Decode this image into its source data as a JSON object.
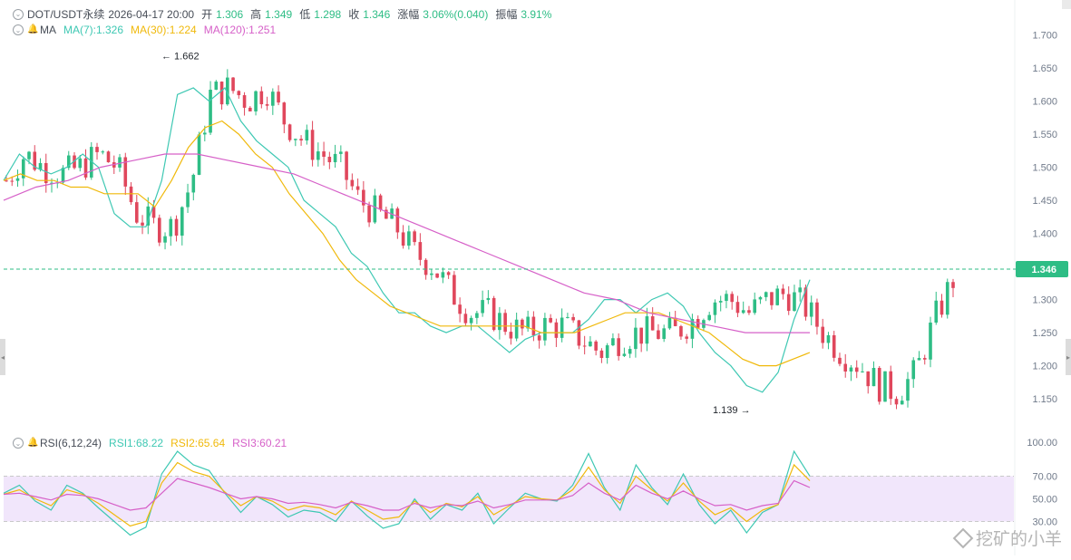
{
  "header": {
    "symbol": "DOT/USDT永续",
    "datetime": "2026-04-17 20:00",
    "open_label": "开",
    "open": "1.306",
    "high_label": "高",
    "high": "1.349",
    "low_label": "低",
    "low": "1.298",
    "close_label": "收",
    "close": "1.346",
    "change_label": "涨幅",
    "change": "3.06%(0.040)",
    "amplitude_label": "振幅",
    "amplitude": "3.91%"
  },
  "ma_legend": {
    "label": "MA",
    "ma7": "MA(7):1.326",
    "ma30": "MA(30):1.224",
    "ma120": "MA(120):1.251"
  },
  "rsi_legend": {
    "label": "RSI(6,12,24)",
    "rsi1": "RSI1:68.22",
    "rsi2": "RSI2:65.64",
    "rsi3": "RSI3:60.21"
  },
  "colors": {
    "up": "#2ebd85",
    "down": "#e0475c",
    "ma7": "#3ec8b3",
    "ma30": "#f0b90b",
    "ma120": "#d660c8",
    "rsi1": "#3ec8b3",
    "rsi2": "#f0b90b",
    "rsi3": "#d660c8",
    "rsi_band": "#f1e6fb"
  },
  "price_axis": {
    "ticks": [
      "1.700",
      "1.650",
      "1.600",
      "1.550",
      "1.500",
      "1.450",
      "1.400",
      "1.350",
      "1.300",
      "1.250",
      "1.200",
      "1.150"
    ],
    "current_price": "1.346"
  },
  "rsi_axis": {
    "ticks": [
      "100.00",
      "70.00",
      "50.00",
      "30.00"
    ]
  },
  "annotations": {
    "high": "1.662",
    "low": "1.139"
  },
  "watermark": "挖矿的小羊",
  "chart_data": [
    {
      "type": "line",
      "title": "",
      "description_of_series": "candlestick price with moving averages",
      "ylim": [
        1.12,
        1.72
      ],
      "ticks": [
        1.7,
        1.65,
        1.6,
        1.55,
        1.5,
        1.45,
        1.4,
        1.35,
        1.3,
        1.25,
        1.2,
        1.15
      ],
      "current_price": 1.346,
      "max_marker": 1.662,
      "min_marker": 1.139,
      "series": [
        {
          "name": "MA(7)",
          "values": [
            1.48,
            1.52,
            1.5,
            1.49,
            1.5,
            1.52,
            1.5,
            1.43,
            1.41,
            1.41,
            1.48,
            1.61,
            1.62,
            1.6,
            1.62,
            1.57,
            1.54,
            1.52,
            1.5,
            1.45,
            1.43,
            1.41,
            1.37,
            1.35,
            1.31,
            1.28,
            1.28,
            1.26,
            1.25,
            1.26,
            1.26,
            1.24,
            1.22,
            1.24,
            1.25,
            1.25,
            1.25,
            1.27,
            1.3,
            1.3,
            1.28,
            1.3,
            1.31,
            1.29,
            1.25,
            1.22,
            1.2,
            1.17,
            1.16,
            1.19,
            1.27,
            1.33
          ]
        },
        {
          "name": "MA(30)",
          "values": [
            1.48,
            1.49,
            1.48,
            1.48,
            1.47,
            1.47,
            1.46,
            1.46,
            1.46,
            1.44,
            1.48,
            1.53,
            1.56,
            1.57,
            1.55,
            1.52,
            1.5,
            1.46,
            1.43,
            1.4,
            1.36,
            1.33,
            1.31,
            1.29,
            1.28,
            1.27,
            1.26,
            1.26,
            1.26,
            1.26,
            1.26,
            1.26,
            1.25,
            1.25,
            1.25,
            1.26,
            1.27,
            1.28,
            1.28,
            1.28,
            1.27,
            1.26,
            1.25,
            1.23,
            1.21,
            1.2,
            1.2,
            1.21,
            1.22
          ]
        },
        {
          "name": "MA(120)",
          "values": [
            1.45,
            1.47,
            1.48,
            1.5,
            1.51,
            1.52,
            1.52,
            1.51,
            1.5,
            1.49,
            1.47,
            1.45,
            1.43,
            1.41,
            1.39,
            1.37,
            1.35,
            1.33,
            1.31,
            1.3,
            1.28,
            1.27,
            1.26,
            1.25,
            1.25,
            1.25
          ]
        }
      ]
    },
    {
      "type": "line",
      "title": "",
      "ylim": [
        0,
        100
      ],
      "ticks": [
        100,
        70,
        50,
        30
      ],
      "band": [
        30,
        70
      ],
      "series": [
        {
          "name": "RSI1",
          "values": [
            55,
            62,
            48,
            40,
            62,
            55,
            42,
            30,
            18,
            25,
            72,
            92,
            80,
            75,
            55,
            38,
            52,
            45,
            34,
            40,
            38,
            30,
            48,
            35,
            24,
            28,
            50,
            32,
            45,
            40,
            55,
            28,
            42,
            55,
            50,
            48,
            62,
            90,
            60,
            40,
            80,
            60,
            45,
            72,
            45,
            28,
            40,
            20,
            38,
            45,
            92,
            70
          ]
        },
        {
          "name": "RSI2",
          "values": [
            54,
            58,
            50,
            44,
            58,
            54,
            46,
            36,
            26,
            30,
            64,
            82,
            74,
            70,
            56,
            44,
            52,
            48,
            40,
            44,
            42,
            36,
            48,
            40,
            32,
            34,
            48,
            38,
            46,
            43,
            52,
            36,
            44,
            52,
            50,
            49,
            58,
            78,
            58,
            46,
            70,
            58,
            48,
            64,
            48,
            36,
            42,
            30,
            40,
            45,
            80,
            66
          ]
        },
        {
          "name": "RSI3",
          "values": [
            54,
            55,
            52,
            49,
            54,
            53,
            50,
            45,
            40,
            42,
            55,
            68,
            64,
            60,
            55,
            50,
            52,
            50,
            46,
            47,
            45,
            42,
            47,
            44,
            40,
            40,
            46,
            42,
            45,
            44,
            48,
            42,
            45,
            49,
            49,
            49,
            53,
            64,
            55,
            49,
            62,
            55,
            50,
            57,
            50,
            44,
            45,
            40,
            44,
            46,
            66,
            60
          ]
        }
      ]
    }
  ]
}
